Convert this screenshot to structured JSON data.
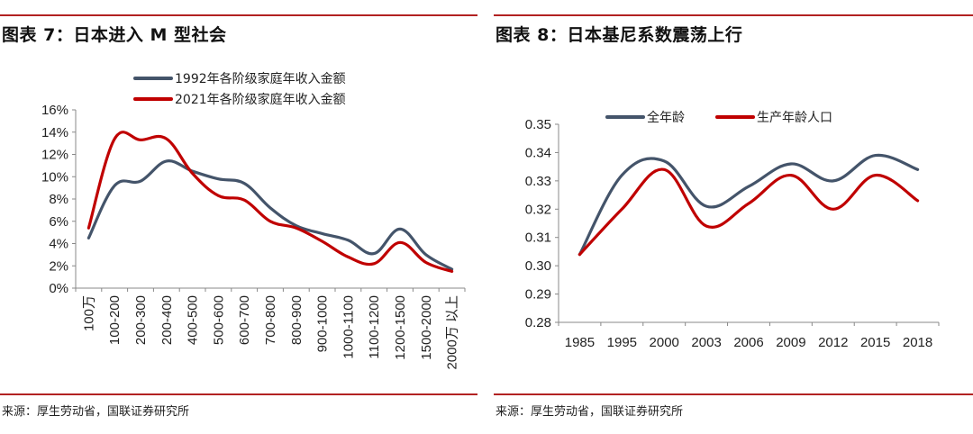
{
  "colors": {
    "accent": "#b22222",
    "series_dark": "#44546a",
    "series_red": "#c00000",
    "axis": "#888888"
  },
  "left": {
    "title": "图表 7：日本进入 M 型社会",
    "source": "来源：厚生劳动省，国联证券研究所"
  },
  "right": {
    "title": "图表 8：日本基尼系数震荡上行",
    "source": "来源：厚生劳动省，国联证券研究所"
  },
  "chart_data": [
    {
      "type": "line",
      "categories": [
        "100万",
        "100-200",
        "200-300",
        "200-400",
        "400-500",
        "500-600",
        "600-700",
        "700-800",
        "800-900",
        "900-1000",
        "1000-1100",
        "1100-1200",
        "1200-1500",
        "1500-2000",
        "2000万 以上"
      ],
      "series": [
        {
          "name": "1992年各阶级家庭年收入金额",
          "color": "#44546a",
          "values": [
            4.5,
            9.2,
            9.6,
            11.4,
            10.5,
            9.8,
            9.4,
            7.2,
            5.6,
            4.9,
            4.3,
            3.1,
            5.3,
            3.0,
            1.7
          ]
        },
        {
          "name": "2021年各阶级家庭年收入金额",
          "color": "#c00000",
          "values": [
            5.4,
            13.4,
            13.3,
            13.4,
            10.3,
            8.3,
            7.9,
            6.0,
            5.4,
            4.2,
            2.8,
            2.2,
            4.1,
            2.3,
            1.5
          ]
        }
      ],
      "ylim": [
        0,
        16
      ],
      "yticks": [
        "0%",
        "2%",
        "4%",
        "6%",
        "8%",
        "10%",
        "12%",
        "14%",
        "16%"
      ],
      "legend_position": "top",
      "grid": false
    },
    {
      "type": "line",
      "categories": [
        "1985",
        "1995",
        "2000",
        "2003",
        "2006",
        "2009",
        "2012",
        "2015",
        "2018"
      ],
      "series": [
        {
          "name": "全年龄",
          "color": "#44546a",
          "values": [
            0.304,
            0.332,
            0.337,
            0.321,
            0.328,
            0.336,
            0.33,
            0.339,
            0.334
          ]
        },
        {
          "name": "生产年龄人口",
          "color": "#c00000",
          "values": [
            0.304,
            0.32,
            0.334,
            0.314,
            0.322,
            0.332,
            0.32,
            0.332,
            0.323
          ]
        }
      ],
      "ylim": [
        0.28,
        0.35
      ],
      "yticks": [
        "0.28",
        "0.29",
        "0.30",
        "0.31",
        "0.32",
        "0.33",
        "0.34",
        "0.35"
      ],
      "legend_position": "top",
      "grid": false
    }
  ]
}
